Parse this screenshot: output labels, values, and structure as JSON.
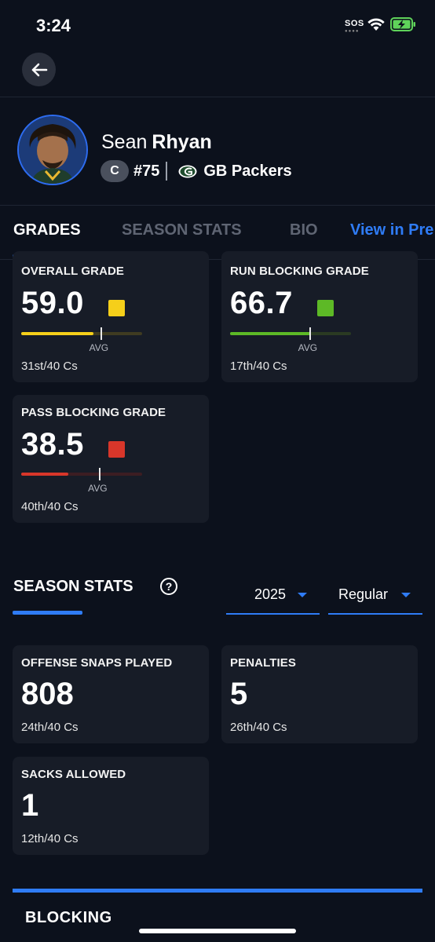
{
  "status_bar": {
    "time": "3:24",
    "sos": "SOS"
  },
  "player": {
    "first_name": "Sean",
    "last_name": "Rhyan",
    "position": "C",
    "number": "#75",
    "team": "GB Packers"
  },
  "tabs": [
    {
      "label": "GRADES",
      "active": true
    },
    {
      "label": "SEASON STATS",
      "active": false
    },
    {
      "label": "BIO",
      "active": false
    },
    {
      "label": "View in Pre",
      "active": false
    }
  ],
  "grades": [
    {
      "title": "OVERALL GRADE",
      "value": "59.0",
      "color": "#f5cf1a",
      "fill_fraction": 0.6,
      "avg_fraction": 0.66,
      "avg_label": "AVG",
      "rank": "31st/40 Cs"
    },
    {
      "title": "RUN BLOCKING GRADE",
      "value": "66.7",
      "color": "#5db926",
      "fill_fraction": 0.67,
      "avg_fraction": 0.66,
      "avg_label": "AVG",
      "rank": "17th/40 Cs"
    },
    {
      "title": "PASS BLOCKING GRADE",
      "value": "38.5",
      "color": "#d8362a",
      "fill_fraction": 0.39,
      "avg_fraction": 0.65,
      "avg_label": "AVG",
      "rank": "40th/40 Cs"
    }
  ],
  "season_stats": {
    "title": "SEASON STATS",
    "help": "?",
    "season": "2025",
    "season_type": "Regular",
    "stats": [
      {
        "title": "OFFENSE SNAPS PLAYED",
        "value": "808",
        "rank": "24th/40 Cs"
      },
      {
        "title": "PENALTIES",
        "value": "5",
        "rank": "26th/40 Cs"
      },
      {
        "title": "SACKS ALLOWED",
        "value": "1",
        "rank": "12th/40 Cs"
      }
    ]
  },
  "blocking": {
    "title": "BLOCKING"
  },
  "colors": {
    "accent": "#2f7cf6",
    "background": "#0c111c",
    "card": "#171c27"
  }
}
